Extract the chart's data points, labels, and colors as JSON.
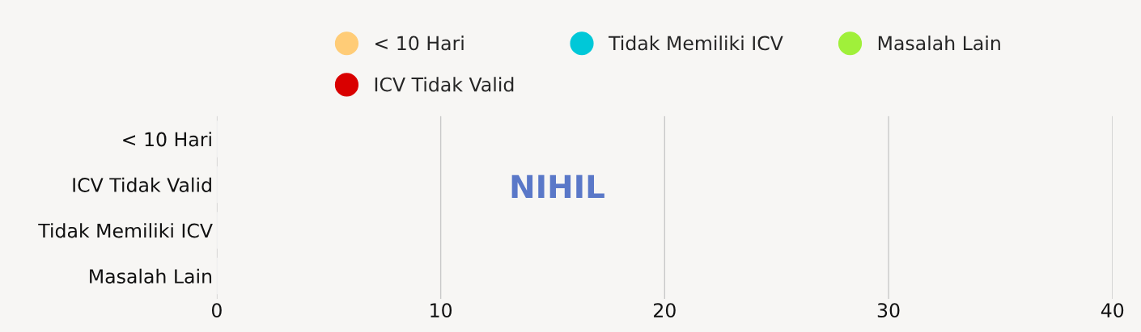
{
  "chart_data": {
    "type": "bar",
    "orientation": "horizontal",
    "categories": [
      "< 10 Hari",
      "ICV Tidak Valid",
      "Tidak Memiliki ICV",
      "Masalah Lain"
    ],
    "series": [
      {
        "name": "< 10 Hari",
        "color": "#ffcc77",
        "values": [
          0,
          null,
          null,
          null
        ]
      },
      {
        "name": "ICV Tidak Valid",
        "color": "#d90000",
        "values": [
          null,
          0,
          null,
          null
        ]
      },
      {
        "name": "Tidak Memiliki ICV",
        "color": "#00c8d8",
        "values": [
          null,
          null,
          0,
          null
        ]
      },
      {
        "name": "Masalah Lain",
        "color": "#a0f03a",
        "values": [
          null,
          null,
          null,
          0
        ]
      }
    ],
    "xlim": [
      0,
      40
    ],
    "xticks": [
      0,
      10,
      20,
      30,
      40
    ],
    "grid": "x",
    "legend": "top",
    "annotations": [
      "NIHIL"
    ]
  }
}
